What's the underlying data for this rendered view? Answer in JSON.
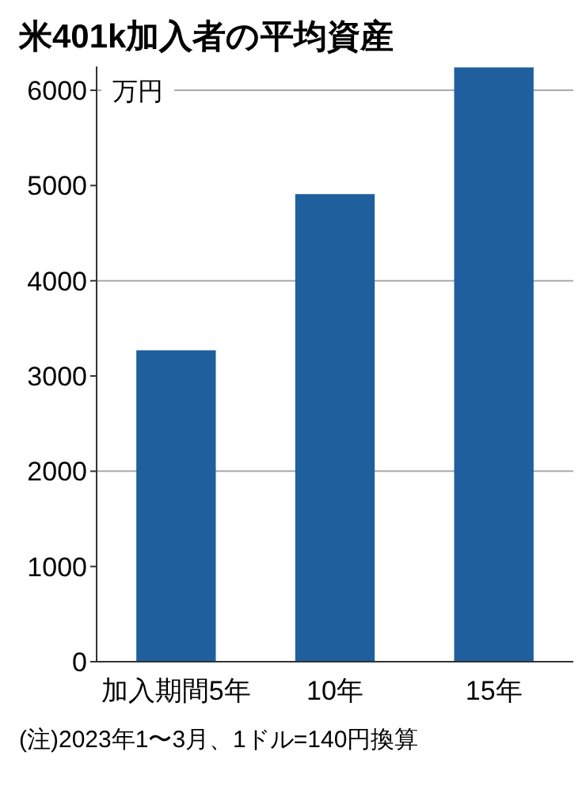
{
  "chart_data": {
    "type": "bar",
    "title": "米401k加入者の平均資産",
    "ylabel": "万円",
    "categories": [
      "加入期間5年",
      "10年",
      "15年"
    ],
    "values": [
      3270,
      4910,
      6240
    ],
    "color": "#1f5f9e",
    "ylim": [
      0,
      6250
    ],
    "yticks": [
      0,
      1000,
      2000,
      3000,
      4000,
      5000,
      6000
    ],
    "ref_lines": [
      {
        "axis": "y",
        "value": 2000,
        "color": "#aaaaaa"
      },
      {
        "axis": "y",
        "value": 4000,
        "color": "#aaaaaa"
      },
      {
        "axis": "y",
        "value": 6000,
        "color": "#aaaaaa"
      }
    ],
    "annotations": [
      "(注)2023年1〜3月、1ドル=140円換算"
    ]
  }
}
